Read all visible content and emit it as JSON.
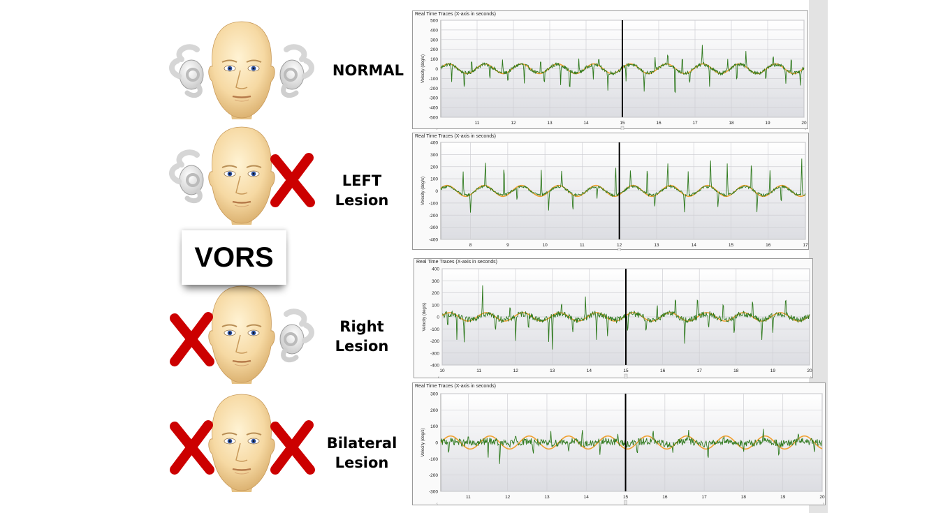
{
  "figure": {
    "vors_label": "VORS",
    "rows": [
      {
        "label_lines": [
          "NORMAL"
        ],
        "ears": [
          "ok",
          "ok"
        ]
      },
      {
        "label_lines": [
          "LEFT",
          "Lesion"
        ],
        "ears": [
          "ok",
          "x"
        ]
      },
      {
        "label_lines": [
          "Right",
          "Lesion"
        ],
        "ears": [
          "x",
          "ok"
        ]
      },
      {
        "label_lines": [
          "Bilateral",
          "Lesion"
        ],
        "ears": [
          "x",
          "x"
        ]
      }
    ]
  },
  "colors": {
    "head_velocity": "#f0a030",
    "eye_velocity": "#2f7a1e",
    "cursor": "#000000",
    "cross": "#cc0000",
    "plot_bg_top": "#ffffff",
    "plot_bg_bottom": "#dcdde2"
  },
  "chart_data": [
    {
      "type": "line",
      "title": "Real Time Traces (X-axis in seconds)",
      "ylabel": "Velocity (deg/s)",
      "xlim": [
        10,
        20
      ],
      "ylim": [
        -500,
        500
      ],
      "xticks": [
        11,
        12,
        13,
        14,
        15,
        16,
        17,
        18,
        19,
        20
      ],
      "yticks": [
        500,
        400,
        300,
        200,
        100,
        0,
        -100,
        -200,
        -300,
        -400,
        -500
      ],
      "cursor_x": 15,
      "series": [
        {
          "role": "head",
          "amplitude": 50,
          "period": 1.0,
          "phase": 0.2
        },
        {
          "role": "eye",
          "amplitude": 45,
          "noise": 18,
          "spikes": [
            [
              10.3,
              -160
            ],
            [
              10.65,
              -200
            ],
            [
              10.85,
              150
            ],
            [
              11.35,
              -170
            ],
            [
              11.7,
              150
            ],
            [
              11.85,
              -130
            ],
            [
              12.3,
              -200
            ],
            [
              12.75,
              160
            ],
            [
              12.85,
              -150
            ],
            [
              13.3,
              -190
            ],
            [
              13.55,
              -260
            ],
            [
              13.8,
              140
            ],
            [
              14.2,
              -170
            ],
            [
              14.35,
              100
            ],
            [
              14.6,
              -200
            ],
            [
              15.1,
              -150
            ],
            [
              15.6,
              -190
            ],
            [
              15.9,
              120
            ],
            [
              16.25,
              150
            ],
            [
              16.45,
              -400
            ],
            [
              16.65,
              230
            ],
            [
              16.85,
              -170
            ],
            [
              17.2,
              210
            ],
            [
              17.4,
              -200
            ],
            [
              17.9,
              120
            ],
            [
              18.15,
              -200
            ],
            [
              18.4,
              160
            ],
            [
              18.95,
              -150
            ],
            [
              19.15,
              120
            ],
            [
              19.5,
              -160
            ],
            [
              19.65,
              180
            ],
            [
              19.9,
              -150
            ]
          ]
        }
      ]
    },
    {
      "type": "line",
      "title": "Real Time Traces (X-axis in seconds)",
      "ylabel": "Velocity (deg/s)",
      "xlim": [
        7.2,
        17
      ],
      "ylim": [
        -400,
        400
      ],
      "xticks": [
        8,
        9,
        10,
        11,
        12,
        13,
        14,
        15,
        16,
        17
      ],
      "yticks": [
        400,
        300,
        200,
        100,
        0,
        -100,
        -200,
        -300,
        -400
      ],
      "cursor_x": 12,
      "series": [
        {
          "role": "head",
          "amplitude": 45,
          "period": 1.0,
          "phase": 0.5
        },
        {
          "role": "eye",
          "amplitude": 35,
          "noise": 10,
          "spikes": [
            [
              7.8,
              210
            ],
            [
              8.0,
              -180
            ],
            [
              8.4,
              250
            ],
            [
              8.9,
              300
            ],
            [
              9.25,
              -130
            ],
            [
              9.9,
              230
            ],
            [
              10.1,
              -170
            ],
            [
              10.45,
              150
            ],
            [
              10.75,
              -180
            ],
            [
              11.4,
              -100
            ],
            [
              11.9,
              270
            ],
            [
              12.3,
              160
            ],
            [
              12.75,
              260
            ],
            [
              12.95,
              -120
            ],
            [
              13.3,
              230
            ],
            [
              13.75,
              -170
            ],
            [
              13.85,
              200
            ],
            [
              14.45,
              250
            ],
            [
              14.65,
              -150
            ],
            [
              14.9,
              260
            ],
            [
              15.55,
              270
            ],
            [
              15.7,
              -170
            ],
            [
              16.05,
              200
            ],
            [
              16.35,
              -170
            ],
            [
              16.9,
              330
            ]
          ]
        }
      ]
    },
    {
      "type": "line",
      "title": "Real Time Traces (X-axis in seconds)",
      "ylabel": "Velocity (deg/s)",
      "xlim": [
        10,
        20
      ],
      "ylim": [
        -400,
        400
      ],
      "xticks": [
        10,
        11,
        12,
        13,
        14,
        15,
        16,
        17,
        18,
        19,
        20
      ],
      "yticks": [
        400,
        300,
        200,
        100,
        0,
        -100,
        -200,
        -300,
        -400
      ],
      "cursor_x": 15,
      "series": [
        {
          "role": "head",
          "amplitude": 35,
          "period": 1.0,
          "phase": 0.3
        },
        {
          "role": "eye",
          "amplitude": 25,
          "noise": 25,
          "spikes": [
            [
              10.15,
              -150
            ],
            [
              10.4,
              -220
            ],
            [
              10.6,
              -200
            ],
            [
              11.1,
              240
            ],
            [
              11.45,
              -130
            ],
            [
              11.85,
              150
            ],
            [
              12.0,
              -200
            ],
            [
              12.35,
              -120
            ],
            [
              12.9,
              -210
            ],
            [
              13.0,
              -280
            ],
            [
              13.25,
              140
            ],
            [
              13.55,
              -150
            ],
            [
              13.9,
              170
            ],
            [
              14.2,
              -200
            ],
            [
              14.5,
              -140
            ],
            [
              15.05,
              -170
            ],
            [
              15.55,
              -160
            ],
            [
              15.85,
              140
            ],
            [
              16.35,
              170
            ],
            [
              16.6,
              -210
            ],
            [
              16.95,
              180
            ],
            [
              17.25,
              -150
            ],
            [
              17.65,
              190
            ],
            [
              17.95,
              -180
            ],
            [
              18.45,
              180
            ],
            [
              18.7,
              -170
            ],
            [
              19.0,
              -140
            ],
            [
              19.35,
              170
            ]
          ]
        }
      ]
    },
    {
      "type": "line",
      "title": "Real Time Traces (X-axis in seconds)",
      "ylabel": "Velocity (deg/s)",
      "xlim": [
        10.3,
        20
      ],
      "ylim": [
        -300,
        300
      ],
      "xticks": [
        11,
        12,
        13,
        14,
        15,
        16,
        17,
        18,
        19,
        20
      ],
      "yticks": [
        300,
        200,
        100,
        0,
        -100,
        -200,
        -300
      ],
      "cursor_x": 15,
      "series": [
        {
          "role": "head",
          "amplitude": 40,
          "period": 1.0,
          "phase": 0.0
        },
        {
          "role": "eye",
          "amplitude": 8,
          "noise": 22,
          "spikes": [
            [
              10.5,
              -80
            ],
            [
              11.0,
              70
            ],
            [
              11.5,
              -110
            ],
            [
              11.8,
              -170
            ],
            [
              12.2,
              70
            ],
            [
              12.65,
              -100
            ],
            [
              13.1,
              80
            ],
            [
              13.55,
              -100
            ],
            [
              13.9,
              90
            ],
            [
              14.35,
              -80
            ],
            [
              14.8,
              60
            ],
            [
              15.3,
              -90
            ],
            [
              15.7,
              70
            ],
            [
              16.2,
              -90
            ],
            [
              16.6,
              80
            ],
            [
              17.1,
              -100
            ],
            [
              17.5,
              60
            ],
            [
              18.0,
              -80
            ],
            [
              18.5,
              80
            ],
            [
              18.9,
              -100
            ],
            [
              19.4,
              70
            ],
            [
              19.8,
              -80
            ]
          ]
        }
      ]
    }
  ]
}
